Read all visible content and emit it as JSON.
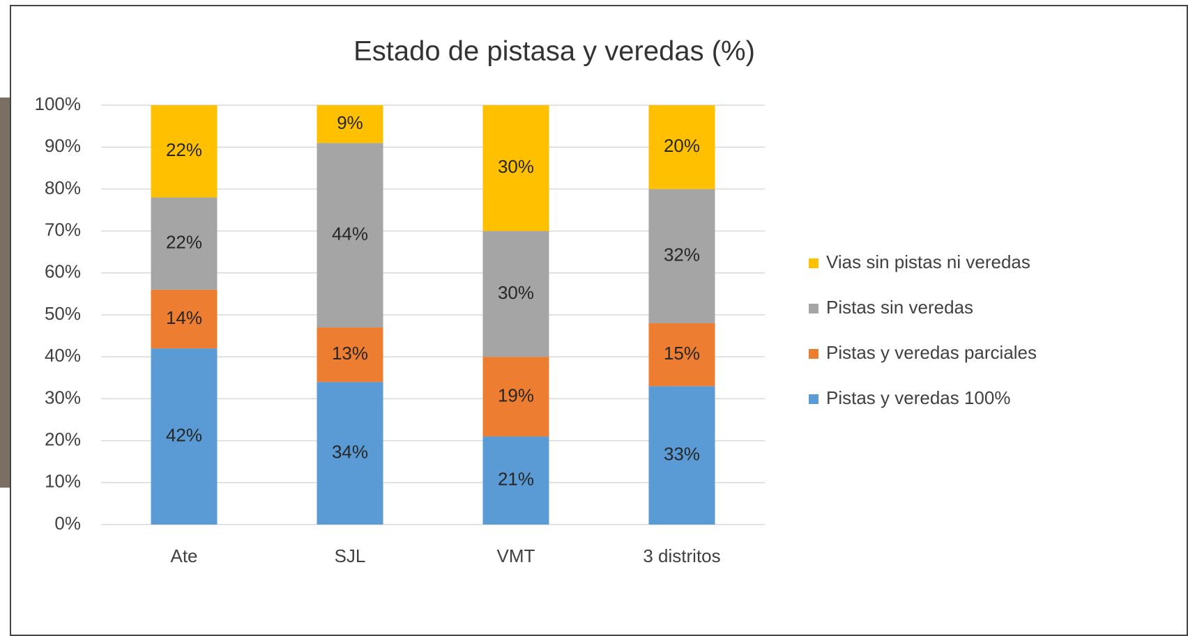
{
  "chart_data": {
    "type": "stacked_bar",
    "title": "Estado de pistasa y veredas (%)",
    "categories": [
      "Ate",
      "SJL",
      "VMT",
      "3 distritos"
    ],
    "series": [
      {
        "name": "Pistas y veredas 100%",
        "color": "#5b9bd5",
        "values": [
          42,
          34,
          21,
          33
        ],
        "value_labels": [
          "42%",
          "34%",
          "21%",
          "33%"
        ]
      },
      {
        "name": "Pistas y veredas parciales",
        "color": "#ed7d31",
        "values": [
          14,
          13,
          19,
          15
        ],
        "value_labels": [
          "14%",
          "13%",
          "19%",
          "15%"
        ]
      },
      {
        "name": "Pistas sin veredas",
        "color": "#a5a5a5",
        "values": [
          22,
          44,
          30,
          32
        ],
        "value_labels": [
          "22%",
          "44%",
          "30%",
          "32%"
        ]
      },
      {
        "name": "Vias sin pistas ni veredas",
        "color": "#ffc000",
        "values": [
          22,
          9,
          30,
          20
        ],
        "value_labels": [
          "22%",
          "9%",
          "30%",
          "20%"
        ]
      }
    ],
    "ylim": [
      0,
      100
    ],
    "yticks": [
      {
        "value": 0,
        "label": "0%"
      },
      {
        "value": 10,
        "label": "10%"
      },
      {
        "value": 20,
        "label": "20%"
      },
      {
        "value": 30,
        "label": "30%"
      },
      {
        "value": 40,
        "label": "40%"
      },
      {
        "value": 50,
        "label": "50%"
      },
      {
        "value": 60,
        "label": "60%"
      },
      {
        "value": 70,
        "label": "70%"
      },
      {
        "value": 80,
        "label": "80%"
      },
      {
        "value": 90,
        "label": "90%"
      },
      {
        "value": 100,
        "label": "100%"
      }
    ],
    "grid": true,
    "legend": "right"
  }
}
